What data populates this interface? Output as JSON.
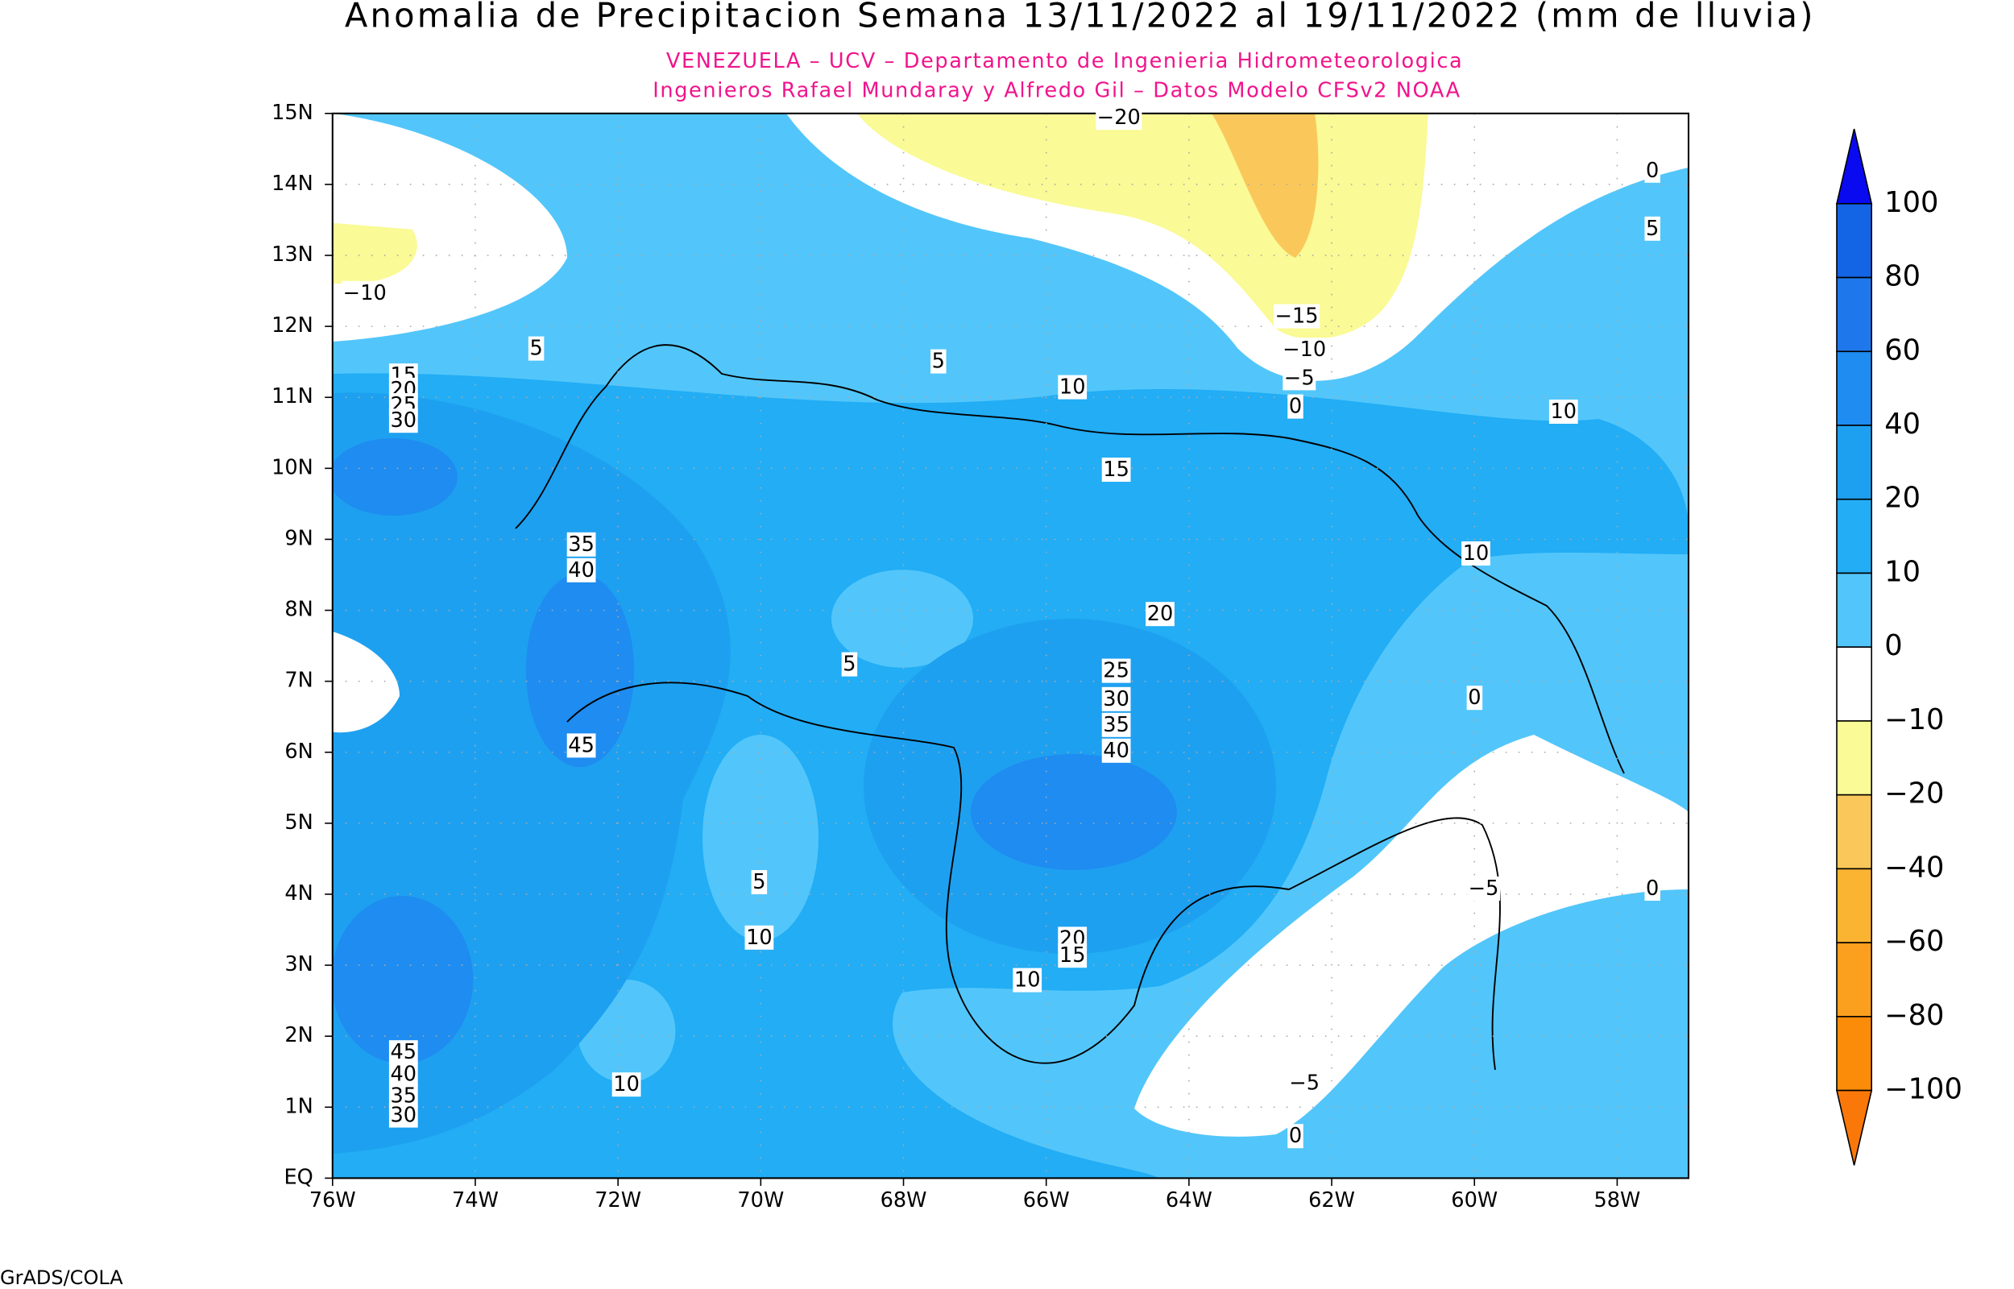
{
  "title": "Anomalia de Precipitacion Semana 13/11/2022 al 19/11/2022 (mm de lluvia)",
  "subtitle_lines": [
    "VENEZUELA – UCV – Departamento de Ingenieria Hidrometeorologica",
    "Ingenieros Rafael Mundaray y Alfredo Gil – Datos Modelo CFSv2 NOAA"
  ],
  "lat_labels": [
    "EQ",
    "1N",
    "2N",
    "3N",
    "4N",
    "5N",
    "6N",
    "7N",
    "8N",
    "9N",
    "10N",
    "11N",
    "12N",
    "13N",
    "14N",
    "15N"
  ],
  "lon_labels": [
    "76W",
    "74W",
    "72W",
    "70W",
    "68W",
    "66W",
    "64W",
    "62W",
    "60W",
    "58W"
  ],
  "colorbar": {
    "labels": [
      "100",
      "80",
      "60",
      "40",
      "20",
      "10",
      "0",
      "−10",
      "−20",
      "−40",
      "−60",
      "−80",
      "−100"
    ],
    "colors": [
      "#0a0af0",
      "#1464e6",
      "#1e78eb",
      "#1e8cf0",
      "#1ea0f0",
      "#22adf5",
      "#52c6fa",
      "#ffffff",
      "#fafa96",
      "#fac85a",
      "#fab432",
      "#fa9f1e",
      "#fa8c0a",
      "#fa780a"
    ]
  },
  "contour_labels": [
    "−20",
    "0",
    "5",
    "−10",
    "−15",
    "−10",
    "−5",
    "0",
    "5",
    "5",
    "10",
    "10",
    "15",
    "20",
    "25",
    "30",
    "15",
    "35",
    "40",
    "10",
    "20",
    "5",
    "25",
    "30",
    "0",
    "35",
    "40",
    "45",
    "5",
    "0",
    "−5",
    "10",
    "20",
    "15",
    "10",
    "45",
    "40",
    "35",
    "30",
    "10",
    "−5",
    "0"
  ],
  "footer": "GrADS/COLA"
}
